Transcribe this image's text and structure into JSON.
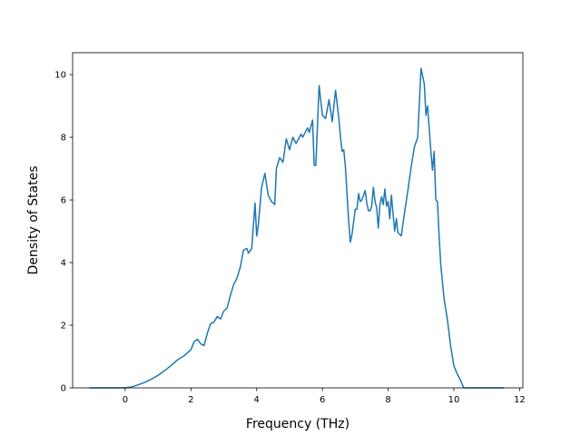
{
  "chart_data": {
    "type": "line",
    "title": "",
    "xlabel": "Frequency (THz)",
    "ylabel": "Density of States",
    "xlim": [
      -1.6,
      12.1
    ],
    "ylim": [
      0,
      10.7
    ],
    "xticks": [
      0,
      2,
      4,
      6,
      8,
      10,
      12
    ],
    "yticks": [
      0,
      2,
      4,
      6,
      8,
      10
    ],
    "grid": false,
    "legend": "none",
    "line_color": "#1f77b4",
    "series": [
      {
        "x": [
          -1.07,
          -0.5,
          0.0,
          0.2,
          0.4,
          0.6,
          0.8,
          1.0,
          1.2,
          1.4,
          1.6,
          1.8,
          2.0,
          2.1,
          2.2,
          2.3,
          2.4,
          2.5,
          2.6,
          2.7,
          2.8,
          2.9,
          3.0,
          3.1,
          3.2,
          3.3,
          3.4,
          3.5,
          3.6,
          3.7,
          3.75,
          3.85,
          3.95,
          4.0,
          4.05,
          4.15,
          4.25,
          4.35,
          4.45,
          4.55,
          4.6,
          4.7,
          4.8,
          4.9,
          5.0,
          5.1,
          5.2,
          5.3,
          5.35,
          5.4,
          5.45,
          5.55,
          5.6,
          5.7,
          5.75,
          5.8,
          5.9,
          6.0,
          6.1,
          6.2,
          6.3,
          6.4,
          6.5,
          6.55,
          6.6,
          6.65,
          6.7,
          6.8,
          6.85,
          6.9,
          7.0,
          7.05,
          7.1,
          7.15,
          7.2,
          7.3,
          7.35,
          7.4,
          7.45,
          7.5,
          7.55,
          7.6,
          7.65,
          7.7,
          7.75,
          7.8,
          7.85,
          7.9,
          7.95,
          8.0,
          8.05,
          8.1,
          8.15,
          8.2,
          8.25,
          8.3,
          8.4,
          8.5,
          8.6,
          8.7,
          8.8,
          8.9,
          9.0,
          9.1,
          9.15,
          9.2,
          9.3,
          9.35,
          9.4,
          9.45,
          9.5,
          9.55,
          9.6,
          9.7,
          9.8,
          9.9,
          10.0,
          10.1,
          10.2,
          10.3,
          10.4,
          10.45,
          10.6,
          11.5
        ],
        "y": [
          0.0,
          0.0,
          0.0,
          0.03,
          0.1,
          0.18,
          0.28,
          0.4,
          0.55,
          0.72,
          0.9,
          1.03,
          1.22,
          1.48,
          1.55,
          1.4,
          1.35,
          1.75,
          2.05,
          2.1,
          2.28,
          2.2,
          2.45,
          2.55,
          2.95,
          3.3,
          3.5,
          3.85,
          4.4,
          4.45,
          4.3,
          4.45,
          5.9,
          4.85,
          5.2,
          6.4,
          6.85,
          6.15,
          5.95,
          5.85,
          7.0,
          7.35,
          7.2,
          7.95,
          7.6,
          8.0,
          7.8,
          8.0,
          8.1,
          8.0,
          8.1,
          8.3,
          8.15,
          8.55,
          7.1,
          7.1,
          9.65,
          8.7,
          8.6,
          9.2,
          8.5,
          9.5,
          8.6,
          8.0,
          7.55,
          7.6,
          7.05,
          5.3,
          4.65,
          4.9,
          5.7,
          5.7,
          6.2,
          5.95,
          6.0,
          6.3,
          5.9,
          5.65,
          5.65,
          5.8,
          6.4,
          5.95,
          5.75,
          5.1,
          5.85,
          6.1,
          5.85,
          6.35,
          5.8,
          5.95,
          5.4,
          6.15,
          5.55,
          5.0,
          5.4,
          4.95,
          4.85,
          5.6,
          6.3,
          7.05,
          7.7,
          8.0,
          10.2,
          9.7,
          8.7,
          9.0,
          7.55,
          6.95,
          7.55,
          6.0,
          5.95,
          4.85,
          3.95,
          2.85,
          2.2,
          1.35,
          0.7,
          0.45,
          0.25,
          0.0,
          0.0,
          0.0,
          0.0,
          0.0
        ]
      }
    ]
  }
}
